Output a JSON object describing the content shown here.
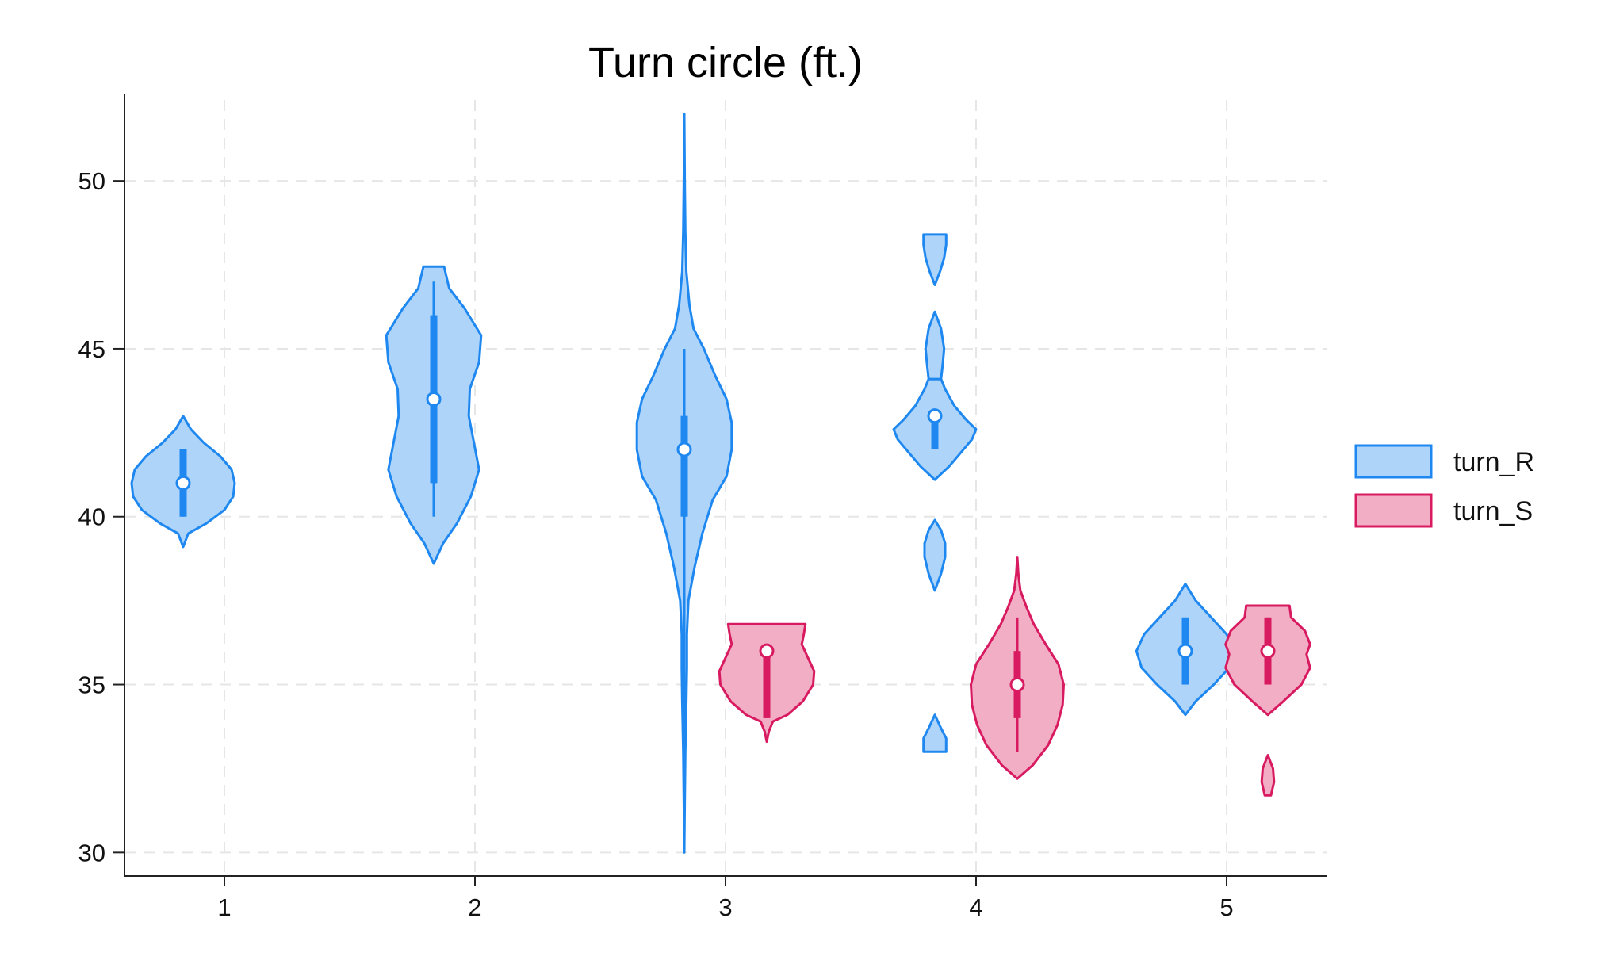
{
  "chart_data": {
    "type": "violin",
    "title": "Turn circle (ft.)",
    "xlabel": "",
    "ylabel": "",
    "categories": [
      "1",
      "2",
      "3",
      "4",
      "5"
    ],
    "ylim": [
      29.3,
      52.6
    ],
    "yticks": [
      30,
      35,
      40,
      45,
      50
    ],
    "grid": true,
    "legend_position": "right",
    "series": [
      {
        "name": "turn_R",
        "fill": "#aed4fa",
        "stroke": "#1e88f0",
        "groups": [
          {
            "category": "1",
            "median": 41,
            "q1": 40,
            "q3": 42,
            "min": 40,
            "max": 42,
            "violins": [
              {
                "profile": [
                  [
                    39.1,
                    0
                  ],
                  [
                    39.5,
                    0.1
                  ],
                  [
                    39.8,
                    0.45
                  ],
                  [
                    40.2,
                    0.8
                  ],
                  [
                    40.6,
                    0.97
                  ],
                  [
                    41,
                    1
                  ],
                  [
                    41.4,
                    0.94
                  ],
                  [
                    41.8,
                    0.72
                  ],
                  [
                    42.2,
                    0.4
                  ],
                  [
                    42.6,
                    0.15
                  ],
                  [
                    43,
                    0
                  ]
                ],
                "scale": 0.72
              }
            ]
          },
          {
            "category": "2",
            "median": 43.5,
            "q1": 41,
            "q3": 46,
            "min": 40,
            "max": 47,
            "violins": [
              {
                "profile": [
                  [
                    38.6,
                    0
                  ],
                  [
                    39.2,
                    0.18
                  ],
                  [
                    39.8,
                    0.45
                  ],
                  [
                    40.6,
                    0.72
                  ],
                  [
                    41.4,
                    0.88
                  ],
                  [
                    42.2,
                    0.78
                  ],
                  [
                    43,
                    0.68
                  ],
                  [
                    43.8,
                    0.7
                  ],
                  [
                    44.6,
                    0.88
                  ],
                  [
                    45.4,
                    0.92
                  ],
                  [
                    46.2,
                    0.6
                  ],
                  [
                    46.8,
                    0.3
                  ],
                  [
                    47.45,
                    0.2
                  ],
                  [
                    47.45,
                    0
                  ]
                ],
                "scale": 0.72
              }
            ]
          },
          {
            "category": "3",
            "median": 42,
            "q1": 40,
            "q3": 43,
            "min": 30,
            "max": 45,
            "violins": [
              {
                "profile": [
                  [
                    30,
                    0
                  ],
                  [
                    31.5,
                    0.01
                  ],
                  [
                    33,
                    0.02
                  ],
                  [
                    34.5,
                    0.04
                  ],
                  [
                    35.5,
                    0.05
                  ],
                  [
                    36.5,
                    0.05
                  ],
                  [
                    37.5,
                    0.08
                  ],
                  [
                    38.5,
                    0.2
                  ],
                  [
                    39.5,
                    0.35
                  ],
                  [
                    40.5,
                    0.55
                  ],
                  [
                    41.2,
                    0.82
                  ],
                  [
                    42,
                    0.92
                  ],
                  [
                    42.8,
                    0.92
                  ],
                  [
                    43.5,
                    0.82
                  ],
                  [
                    44.2,
                    0.6
                  ],
                  [
                    45,
                    0.38
                  ],
                  [
                    45.6,
                    0.18
                  ],
                  [
                    46.3,
                    0.1
                  ],
                  [
                    47.3,
                    0.04
                  ],
                  [
                    48.5,
                    0.02
                  ],
                  [
                    50,
                    0.01
                  ],
                  [
                    52,
                    0
                  ]
                ],
                "scale": 0.72
              }
            ]
          },
          {
            "category": "4",
            "median": 43,
            "q1": 42,
            "q3": 43,
            "min": 42,
            "max": 43,
            "violins": [
              {
                "profile": [
                  [
                    33,
                    0.22
                  ],
                  [
                    33.4,
                    0.22
                  ],
                  [
                    33.7,
                    0.12
                  ],
                  [
                    34.1,
                    0
                  ]
                ],
                "flat_bottom": true,
                "scale": 0.72
              },
              {
                "profile": [
                  [
                    37.8,
                    0
                  ],
                  [
                    38.3,
                    0.12
                  ],
                  [
                    38.8,
                    0.2
                  ],
                  [
                    39.2,
                    0.2
                  ],
                  [
                    39.6,
                    0.12
                  ],
                  [
                    39.9,
                    0
                  ]
                ],
                "scale": 0.72
              },
              {
                "profile": [
                  [
                    41.1,
                    0
                  ],
                  [
                    41.5,
                    0.28
                  ],
                  [
                    41.9,
                    0.5
                  ],
                  [
                    42.3,
                    0.72
                  ],
                  [
                    42.6,
                    0.8
                  ],
                  [
                    42.9,
                    0.6
                  ],
                  [
                    43.3,
                    0.38
                  ],
                  [
                    43.8,
                    0.2
                  ],
                  [
                    44.1,
                    0.12
                  ]
                ],
                "scale": 0.72
              },
              {
                "profile": [
                  [
                    44.1,
                    0.12
                  ],
                  [
                    44.5,
                    0.15
                  ],
                  [
                    45,
                    0.18
                  ],
                  [
                    45.6,
                    0.12
                  ],
                  [
                    46.1,
                    0
                  ]
                ],
                "scale": 0.72
              },
              {
                "profile": [
                  [
                    46.9,
                    0
                  ],
                  [
                    47.3,
                    0.1
                  ],
                  [
                    47.7,
                    0.18
                  ],
                  [
                    48.1,
                    0.22
                  ],
                  [
                    48.4,
                    0.22
                  ]
                ],
                "flat_top": true,
                "scale": 0.72
              }
            ]
          },
          {
            "category": "5",
            "median": 36,
            "q1": 35,
            "q3": 37,
            "min": 35,
            "max": 37,
            "violins": [
              {
                "profile": [
                  [
                    34.1,
                    0
                  ],
                  [
                    34.5,
                    0.2
                  ],
                  [
                    35,
                    0.55
                  ],
                  [
                    35.5,
                    0.85
                  ],
                  [
                    36,
                    0.95
                  ],
                  [
                    36.5,
                    0.8
                  ],
                  [
                    37,
                    0.5
                  ],
                  [
                    37.5,
                    0.2
                  ],
                  [
                    38,
                    0
                  ]
                ],
                "scale": 0.72
              }
            ]
          }
        ]
      },
      {
        "name": "turn_S",
        "fill": "#f2aec5",
        "stroke": "#d81b60",
        "groups": [
          {
            "category": "3",
            "median": 36,
            "q1": 34,
            "q3": 36,
            "min": 34,
            "max": 36,
            "violins": [
              {
                "profile": [
                  [
                    33.3,
                    0
                  ],
                  [
                    33.6,
                    0.04
                  ],
                  [
                    33.9,
                    0.12
                  ],
                  [
                    34.1,
                    0.4
                  ],
                  [
                    34.5,
                    0.7
                  ],
                  [
                    35,
                    0.9
                  ],
                  [
                    35.4,
                    0.92
                  ],
                  [
                    35.8,
                    0.8
                  ],
                  [
                    36.2,
                    0.68
                  ],
                  [
                    36.5,
                    0.72
                  ],
                  [
                    36.8,
                    0.75
                  ]
                ],
                "flat_top": true,
                "scale": 0.72
              }
            ]
          },
          {
            "category": "4",
            "median": 35,
            "q1": 34,
            "q3": 36,
            "min": 33,
            "max": 37,
            "violins": [
              {
                "profile": [
                  [
                    32.2,
                    0
                  ],
                  [
                    32.6,
                    0.3
                  ],
                  [
                    33.2,
                    0.6
                  ],
                  [
                    33.8,
                    0.78
                  ],
                  [
                    34.4,
                    0.88
                  ],
                  [
                    35,
                    0.9
                  ],
                  [
                    35.6,
                    0.8
                  ],
                  [
                    36.2,
                    0.55
                  ],
                  [
                    36.8,
                    0.32
                  ],
                  [
                    37.3,
                    0.18
                  ],
                  [
                    37.8,
                    0.06
                  ],
                  [
                    38.3,
                    0.02
                  ],
                  [
                    38.8,
                    0
                  ]
                ],
                "scale": 0.72
              }
            ]
          },
          {
            "category": "5",
            "median": 36,
            "q1": 35,
            "q3": 37,
            "min": 35,
            "max": 37,
            "violins": [
              {
                "profile": [
                  [
                    31.7,
                    0.06
                  ],
                  [
                    32.1,
                    0.12
                  ],
                  [
                    32.5,
                    0.1
                  ],
                  [
                    32.9,
                    0
                  ]
                ],
                "flat_bottom": true,
                "scale": 0.72
              },
              {
                "profile": [
                  [
                    34.1,
                    0
                  ],
                  [
                    34.5,
                    0.3
                  ],
                  [
                    35,
                    0.65
                  ],
                  [
                    35.5,
                    0.82
                  ],
                  [
                    35.9,
                    0.75
                  ],
                  [
                    36.2,
                    0.82
                  ],
                  [
                    36.6,
                    0.72
                  ],
                  [
                    37,
                    0.45
                  ],
                  [
                    37.35,
                    0.42
                  ]
                ],
                "flat_top": true,
                "scale": 0.72
              }
            ]
          }
        ]
      }
    ]
  }
}
